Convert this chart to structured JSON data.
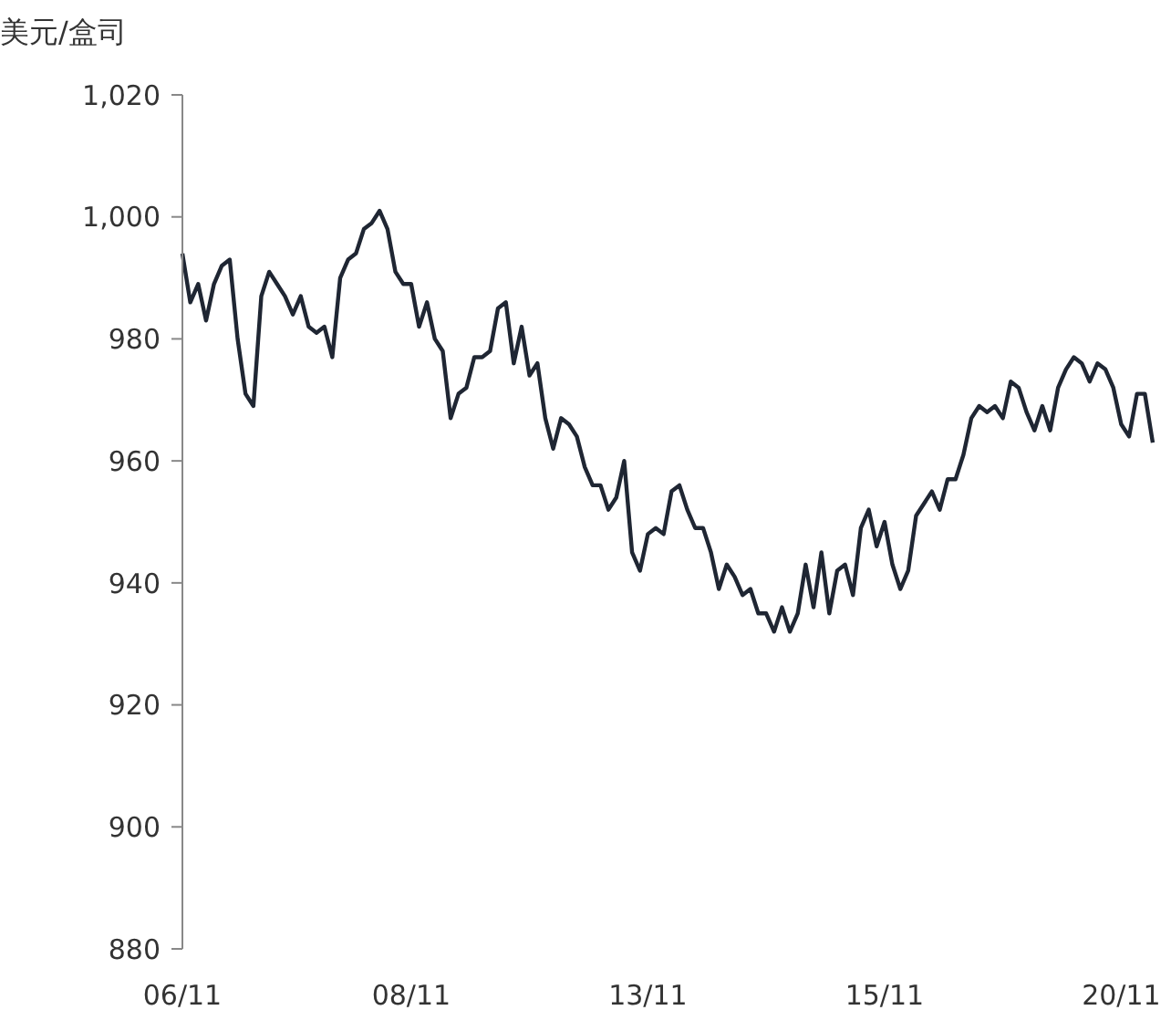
{
  "chart_data": {
    "type": "line",
    "ylabel": "美元/盒司",
    "categories": [
      "06/11",
      null,
      null,
      null,
      null,
      null,
      null,
      null,
      null,
      null,
      null,
      null,
      null,
      null,
      null,
      null,
      null,
      null,
      null,
      null,
      null,
      null,
      null,
      null,
      null,
      null,
      null,
      null,
      null,
      "08/11",
      null,
      null,
      null,
      null,
      null,
      null,
      null,
      null,
      null,
      null,
      null,
      null,
      null,
      null,
      null,
      null,
      null,
      null,
      null,
      null,
      null,
      null,
      null,
      null,
      null,
      null,
      null,
      null,
      null,
      "13/11",
      null,
      null,
      null,
      null,
      null,
      null,
      null,
      null,
      null,
      null,
      null,
      null,
      null,
      null,
      null,
      null,
      null,
      null,
      null,
      null,
      null,
      null,
      null,
      null,
      null,
      null,
      null,
      null,
      null,
      "15/11",
      null,
      null,
      null,
      null,
      null,
      null,
      null,
      null,
      null,
      null,
      null,
      null,
      null,
      null,
      null,
      null,
      null,
      null,
      null,
      null,
      null,
      null,
      null,
      null,
      null,
      null,
      null,
      null,
      null,
      "20/11",
      null,
      null,
      null,
      null
    ],
    "series": [
      {
        "color": "#1f2633",
        "values": [
          994,
          986,
          989,
          983,
          989,
          992,
          993,
          980,
          971,
          969,
          987,
          991,
          989,
          987,
          984,
          987,
          982,
          981,
          982,
          977,
          990,
          993,
          994,
          998,
          999,
          1001,
          998,
          991,
          989,
          989,
          982,
          986,
          980,
          978,
          967,
          971,
          972,
          977,
          977,
          978,
          985,
          986,
          976,
          982,
          974,
          976,
          967,
          962,
          967,
          966,
          964,
          959,
          956,
          956,
          952,
          954,
          960,
          945,
          942,
          948,
          949,
          948,
          955,
          956,
          952,
          949,
          949,
          945,
          939,
          943,
          941,
          938,
          939,
          935,
          935,
          932,
          936,
          932,
          935,
          943,
          936,
          945,
          935,
          942,
          943,
          938,
          949,
          952,
          946,
          950,
          943,
          939,
          942,
          951,
          953,
          955,
          952,
          957,
          957,
          961,
          967,
          969,
          968,
          969,
          967,
          973,
          972,
          968,
          965,
          969,
          965,
          972,
          975,
          977,
          976,
          973,
          976,
          975,
          972,
          966,
          964,
          971,
          971,
          963
        ]
      }
    ],
    "ylim": [
      880,
      1020
    ],
    "yticks": [
      880,
      900,
      920,
      940,
      960,
      980,
      {
        "value": 1000,
        "label": "1,000"
      },
      {
        "value": 1020,
        "label": "1,020"
      }
    ],
    "tick_labels": "xy",
    "grid": false,
    "legend": false,
    "marker": "none",
    "line_style": "solid"
  }
}
